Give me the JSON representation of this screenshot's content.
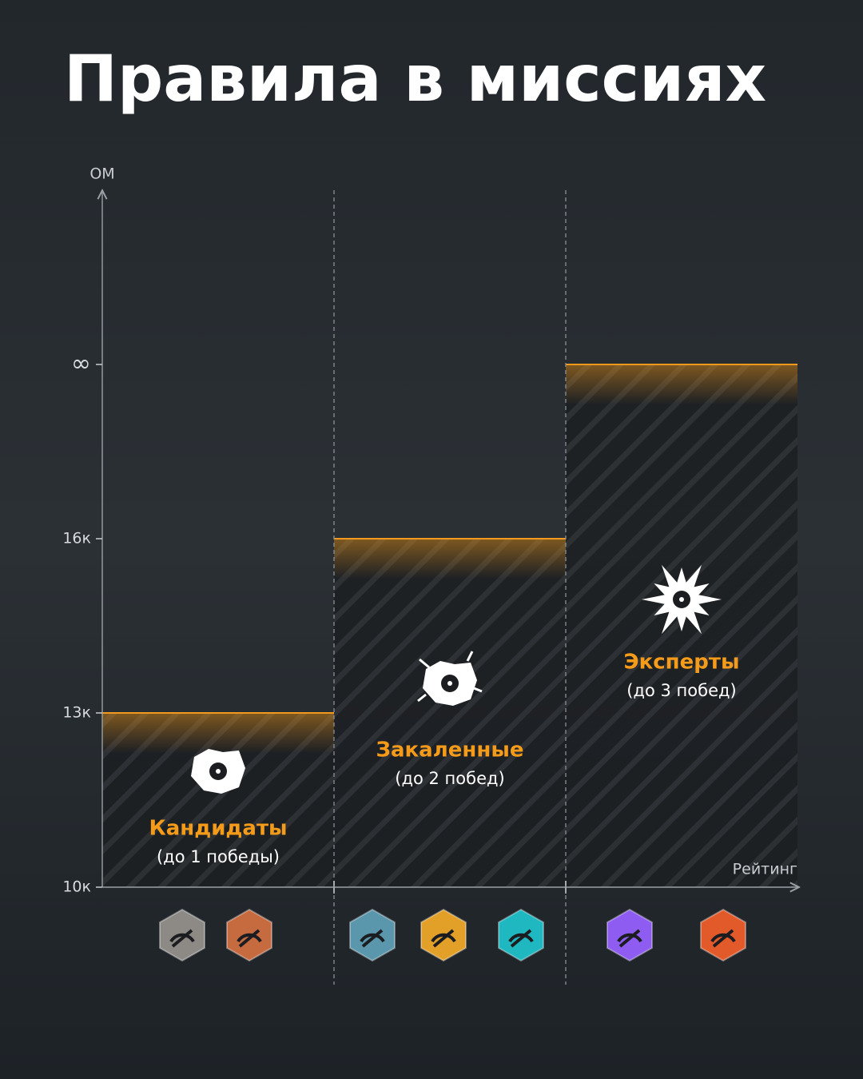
{
  "title": "Правила в миссиях",
  "axis": {
    "y_label": "ОМ",
    "x_label": "Рейтинг",
    "levels": [
      "10к",
      "13к",
      "16к",
      "∞"
    ]
  },
  "tiers": [
    {
      "name": "Кандидаты",
      "note": "(до 1 победы)"
    },
    {
      "name": "Закаленные",
      "note": "(до 2 побед)"
    },
    {
      "name": "Эксперты",
      "note": "(до 3 побед)"
    }
  ]
}
